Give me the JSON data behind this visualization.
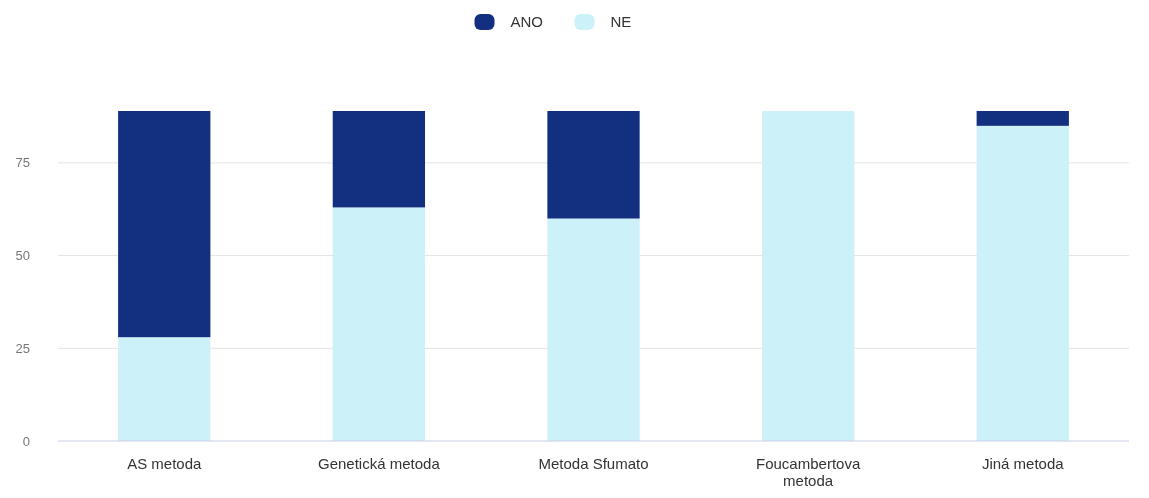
{
  "chart_data": {
    "type": "bar",
    "stacked": true,
    "categories": [
      "AS metoda",
      "Genetická metoda",
      "Metoda Sfumato",
      "Foucambertova metoda",
      "Jiná metoda"
    ],
    "series": [
      {
        "name": "NE",
        "color": "#cdf1f9",
        "values": [
          28,
          63,
          60,
          89,
          85
        ]
      },
      {
        "name": "ANO",
        "color": "#122f80",
        "values": [
          61,
          26,
          29,
          0,
          4
        ]
      }
    ],
    "ylim": [
      0,
      89
    ],
    "yticks": [
      0,
      25,
      50,
      75
    ],
    "grid": "y",
    "legend": "top"
  }
}
